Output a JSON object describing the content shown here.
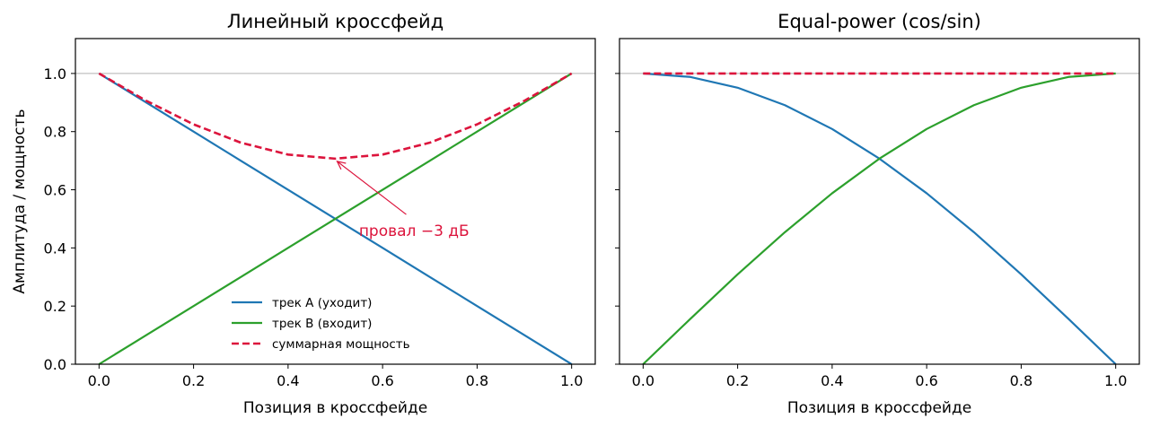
{
  "chart_data": [
    {
      "type": "line",
      "title": "Линейный кроссфейд",
      "xlabel": "Позиция в кроссфейде",
      "ylabel": "Амплитуда / мощность",
      "xlim": [
        -0.05,
        1.05
      ],
      "ylim": [
        0.0,
        1.12
      ],
      "xticks": [
        "0.0",
        "0.2",
        "0.4",
        "0.6",
        "0.8",
        "1.0"
      ],
      "yticks": [
        "0.0",
        "0.2",
        "0.4",
        "0.6",
        "0.8",
        "1.0"
      ],
      "reference_line": 1.0,
      "legend_position": "lower-center",
      "series": [
        {
          "name": "трек A (уходит)",
          "color": "#1f77b4",
          "style": "solid",
          "x": [
            0.0,
            0.1,
            0.2,
            0.3,
            0.4,
            0.5,
            0.6,
            0.7,
            0.8,
            0.9,
            1.0
          ],
          "y": [
            1.0,
            0.9,
            0.8,
            0.7,
            0.6,
            0.5,
            0.4,
            0.3,
            0.2,
            0.1,
            0.0
          ]
        },
        {
          "name": "трек B (входит)",
          "color": "#2ca02c",
          "style": "solid",
          "x": [
            0.0,
            0.1,
            0.2,
            0.3,
            0.4,
            0.5,
            0.6,
            0.7,
            0.8,
            0.9,
            1.0
          ],
          "y": [
            0.0,
            0.1,
            0.2,
            0.3,
            0.4,
            0.5,
            0.6,
            0.7,
            0.8,
            0.9,
            1.0
          ]
        },
        {
          "name": "суммарная мощность",
          "color": "#dc143c",
          "style": "dashed",
          "x": [
            0.0,
            0.1,
            0.2,
            0.3,
            0.4,
            0.5,
            0.6,
            0.7,
            0.8,
            0.9,
            1.0
          ],
          "y": [
            1.0,
            0.906,
            0.825,
            0.762,
            0.721,
            0.707,
            0.721,
            0.762,
            0.825,
            0.906,
            1.0
          ]
        }
      ],
      "annotation": {
        "text": "провал −3 дБ",
        "color": "#dc143c",
        "point": [
          0.5,
          0.707
        ],
        "text_at": [
          0.55,
          0.46
        ]
      }
    },
    {
      "type": "line",
      "title": "Equal-power (cos/sin)",
      "xlabel": "Позиция в кроссфейде",
      "ylabel": "",
      "xlim": [
        -0.05,
        1.05
      ],
      "ylim": [
        0.0,
        1.12
      ],
      "xticks": [
        "0.0",
        "0.2",
        "0.4",
        "0.6",
        "0.8",
        "1.0"
      ],
      "yticks": [],
      "reference_line": 1.0,
      "series": [
        {
          "color": "#1f77b4",
          "style": "solid",
          "x": [
            0.0,
            0.1,
            0.2,
            0.3,
            0.4,
            0.5,
            0.6,
            0.7,
            0.8,
            0.9,
            1.0
          ],
          "y": [
            1.0,
            0.988,
            0.951,
            0.891,
            0.809,
            0.707,
            0.588,
            0.454,
            0.309,
            0.156,
            0.0
          ]
        },
        {
          "color": "#2ca02c",
          "style": "solid",
          "x": [
            0.0,
            0.1,
            0.2,
            0.3,
            0.4,
            0.5,
            0.6,
            0.7,
            0.8,
            0.9,
            1.0
          ],
          "y": [
            0.0,
            0.156,
            0.309,
            0.454,
            0.588,
            0.707,
            0.809,
            0.891,
            0.951,
            0.988,
            1.0
          ]
        },
        {
          "color": "#dc143c",
          "style": "dashed",
          "x": [
            0.0,
            0.1,
            0.2,
            0.3,
            0.4,
            0.5,
            0.6,
            0.7,
            0.8,
            0.9,
            1.0
          ],
          "y": [
            1.0,
            1.0,
            1.0,
            1.0,
            1.0,
            1.0,
            1.0,
            1.0,
            1.0,
            1.0,
            1.0
          ]
        }
      ]
    }
  ]
}
